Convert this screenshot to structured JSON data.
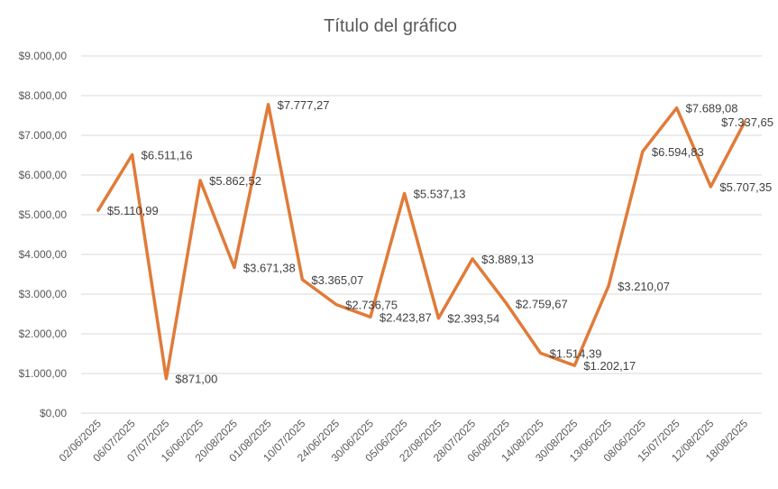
{
  "chart_data": {
    "type": "line",
    "title": "Título del gráfico",
    "xlabel": "",
    "ylabel": "",
    "ylim": [
      0,
      9000
    ],
    "ytick_step": 1000,
    "yticks": [
      "$0,00",
      "$1.000,00",
      "$2.000,00",
      "$3.000,00",
      "$4.000,00",
      "$5.000,00",
      "$6.000,00",
      "$7.000,00",
      "$8.000,00",
      "$9.000,00"
    ],
    "grid": true,
    "legend": "none",
    "categories": [
      "02/06/2025",
      "06/07/2025",
      "07/07/2025",
      "16/06/2025",
      "20/08/2025",
      "01/08/2025",
      "10/07/2025",
      "24/06/2025",
      "30/06/2025",
      "05/06/2025",
      "22/08/2025",
      "28/07/2025",
      "06/08/2025",
      "14/08/2025",
      "30/08/2025",
      "13/06/2025",
      "08/06/2025",
      "15/07/2025",
      "12/08/2025",
      "18/08/2025"
    ],
    "series": [
      {
        "values": [
          5110.99,
          6511.16,
          871.0,
          5862.52,
          3671.38,
          7777.27,
          3365.07,
          2736.75,
          2423.87,
          5537.13,
          2393.54,
          3889.13,
          2759.67,
          1514.39,
          1202.17,
          3210.07,
          6594.83,
          7689.08,
          5707.35,
          7337.65
        ],
        "labels": [
          "$5.110,99",
          "$6.511,16",
          "$871,00",
          "$5.862,52",
          "$3.671,38",
          "$7.777,27",
          "$3.365,07",
          "$2.736,75",
          "$2.423,87",
          "$5.537,13",
          "$2.393,54",
          "$3.889,13",
          "$2.759,67",
          "$1.514,39",
          "$1.202,17",
          "$3.210,07",
          "$6.594,83",
          "$7.689,08",
          "$5.707,35",
          "$7.337,65"
        ]
      }
    ],
    "colors": {
      "series": "#e07b39",
      "grid": "#d9d9d9",
      "text": "#595959"
    }
  }
}
